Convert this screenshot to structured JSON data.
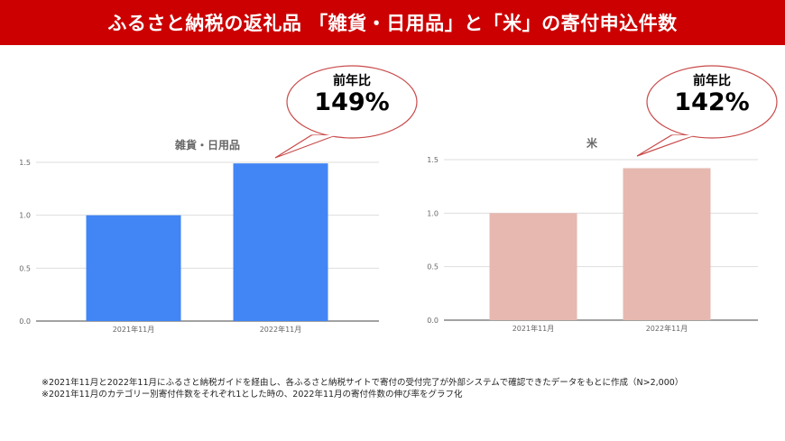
{
  "header": {
    "title": "ふるさと納税の返礼品 「雑貨・日用品」と「米」の寄付申込件数"
  },
  "colors": {
    "banner": "#cc0000",
    "left_bar": "#4285f4",
    "right_bar": "#e6b8af"
  },
  "chart_data": [
    {
      "type": "bar",
      "title": "雑貨・日用品",
      "categories": [
        "2021年11月",
        "2022年11月"
      ],
      "values": [
        1.0,
        1.49
      ],
      "ylim": [
        0,
        1.5
      ],
      "yticks": [
        "0.0",
        "0.5",
        "1.0",
        "1.5"
      ],
      "grid": true,
      "color": "#4285f4",
      "annotation": {
        "label": "前年比",
        "value": "149%"
      }
    },
    {
      "type": "bar",
      "title": "米",
      "categories": [
        "2021年11月",
        "2022年11月"
      ],
      "values": [
        1.0,
        1.42
      ],
      "ylim": [
        0,
        1.5
      ],
      "yticks": [
        "0.0",
        "0.5",
        "1.0",
        "1.5"
      ],
      "grid": true,
      "color": "#e6b8af",
      "annotation": {
        "label": "前年比",
        "value": "142%"
      }
    }
  ],
  "notes": [
    "※2021年11月と2022年11月にふるさと納税ガイドを経由し、各ふるさと納税サイトで寄付の受付完了が外部システムで確認できたデータをもとに作成（N>2,000）",
    "※2021年11月のカテゴリー別寄付件数をそれぞれ1とした時の、2022年11月の寄付件数の伸び率をグラフ化"
  ]
}
